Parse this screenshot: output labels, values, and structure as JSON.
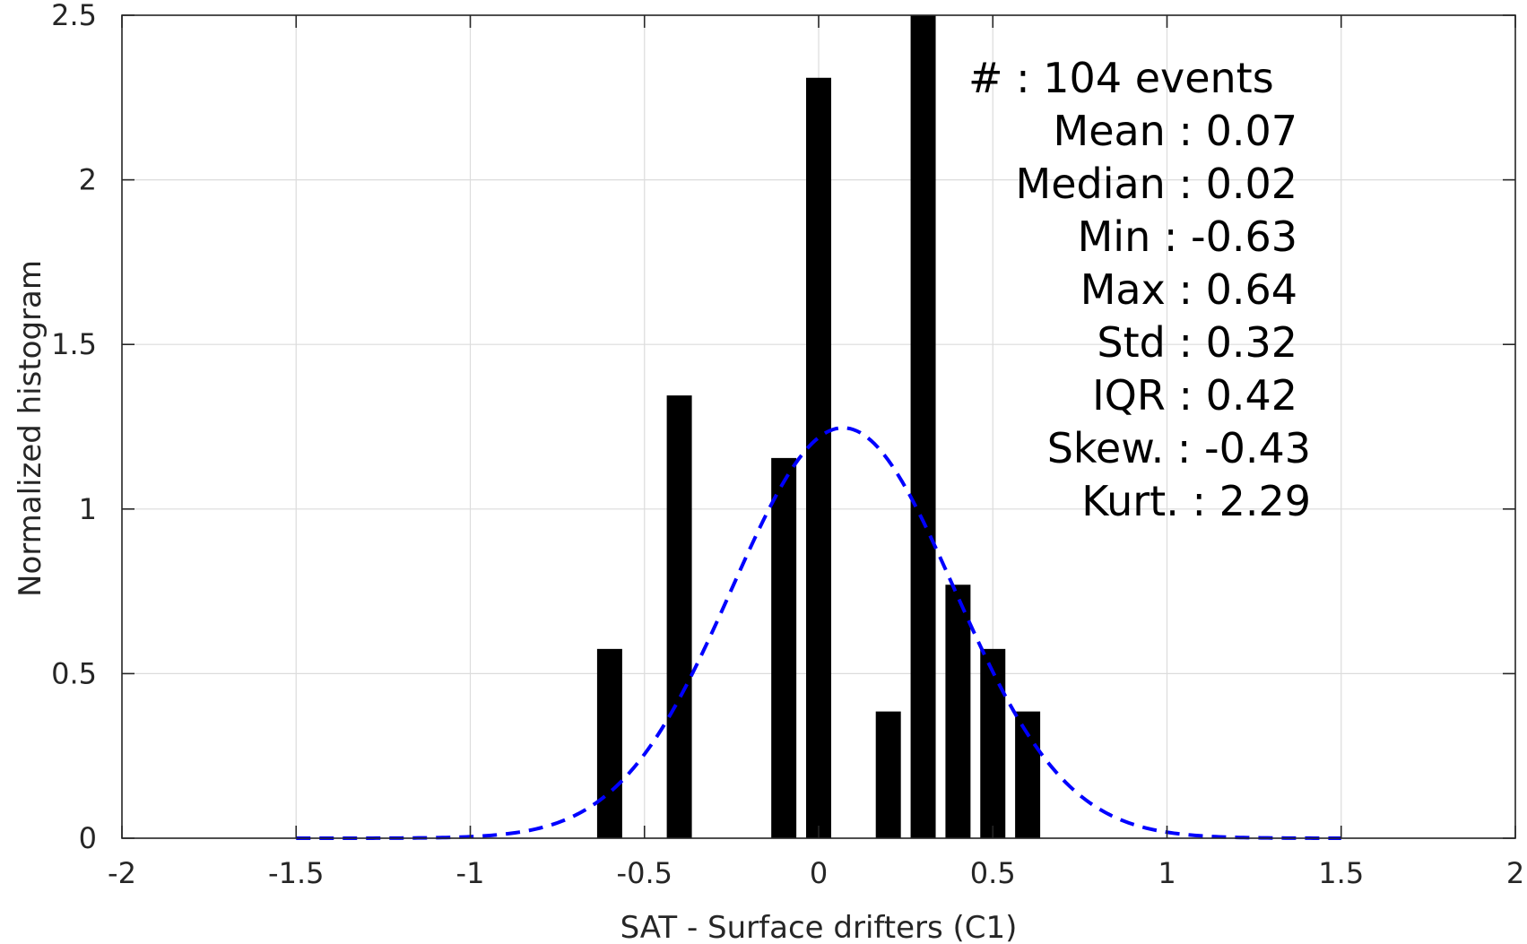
{
  "chart_data": {
    "type": "bar",
    "xlabel": "SAT - Surface drifters (C1)",
    "ylabel": "Normalized histogram",
    "xlim": [
      -2,
      2
    ],
    "ylim": [
      0,
      2.5
    ],
    "xticks": [
      "-2",
      "-1.5",
      "-1",
      "-0.5",
      "0",
      "0.5",
      "1",
      "1.5",
      "2"
    ],
    "yticks": [
      "0",
      "0.5",
      "1",
      "1.5",
      "2",
      "2.5"
    ],
    "grid": true,
    "bars": [
      {
        "x": -0.6,
        "value": 0.575
      },
      {
        "x": -0.4,
        "value": 1.345
      },
      {
        "x": -0.1,
        "value": 1.155
      },
      {
        "x": 0.0,
        "value": 2.31
      },
      {
        "x": 0.2,
        "value": 0.385
      },
      {
        "x": 0.3,
        "value": 2.5
      },
      {
        "x": 0.4,
        "value": 0.77
      },
      {
        "x": 0.5,
        "value": 0.575
      },
      {
        "x": 0.6,
        "value": 0.385
      }
    ],
    "fit_curve": {
      "style": "dashed",
      "color": "#0000ff",
      "mean": 0.07,
      "std": 0.32,
      "x_range": [
        -1.5,
        1.5
      ]
    },
    "stats": {
      "count": "#  : 104 events",
      "mean": "Mean : 0.07",
      "median": "Median : 0.02",
      "min": "Min : -0.63",
      "max": "Max : 0.64",
      "std": "Std : 0.32",
      "iqr": "IQR : 0.42",
      "skew": "Skew. : -0.43",
      "kurt": "Kurt. : 2.29"
    },
    "colors": {
      "bars": "#000000",
      "curve": "#0000ff",
      "grid": "#dcdcdc",
      "axes": "#262626"
    }
  }
}
